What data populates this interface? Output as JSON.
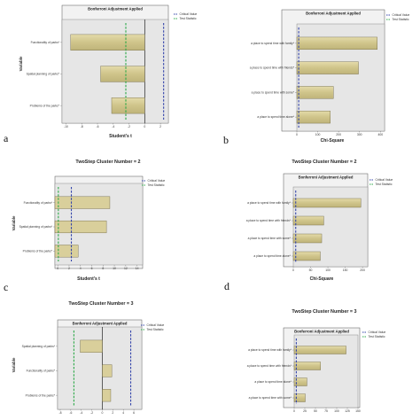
{
  "panels": [
    {
      "letter": "a",
      "cluster_title": "",
      "legend": [
        "Critical Value",
        "Test Statistic"
      ],
      "colors": {
        "critical": "#3344aa",
        "teststat": "#2eaa4a",
        "bar": "#d9cf9b",
        "bar_stroke": "#6b6340"
      },
      "chart_data": {
        "type": "bar",
        "orientation": "horizontal",
        "title": "Bonferroni Adjustment Applied",
        "xlabel": "Student's t",
        "ylabel": "Variable",
        "categories": [
          "Functionality of parks*",
          "Spatial planning of parks*",
          "Problems of the parks*"
        ],
        "values": [
          -9.4,
          -5.6,
          -4.2
        ],
        "xlim": [
          -10.5,
          3
        ],
        "xticks": [
          "-10",
          "-8",
          "-6",
          "-4",
          "-2",
          "0",
          "2"
        ],
        "xtick_values": [
          -10,
          -8,
          -6,
          -4,
          -2,
          0,
          2
        ],
        "zero_line": 0,
        "critical_values": [
          2.4
        ],
        "test_lines": [
          -2.4
        ],
        "bar_shading": true
      }
    },
    {
      "letter": "b",
      "cluster_title": "",
      "legend": [
        "Critical Value",
        "Test Statistic"
      ],
      "colors": {
        "critical": "#3344aa",
        "teststat": "#2eaa4a",
        "bar": "#d9cf9b",
        "bar_stroke": "#6b6340"
      },
      "chart_data": {
        "type": "bar",
        "orientation": "horizontal",
        "title": "Bonferroni Adjustment Applied",
        "xlabel": "Chi-Square",
        "ylabel": "",
        "categories": [
          "a place to spend time with family*",
          "a place to spend time with friends*",
          "a place to spend time with some*",
          "a place to spend time alone*"
        ],
        "values": [
          385,
          295,
          175,
          160
        ],
        "xlim": [
          0,
          420
        ],
        "xticks": [
          "0",
          "100",
          "200",
          "300",
          "400"
        ],
        "xtick_values": [
          0,
          100,
          200,
          300,
          400
        ],
        "zero_line": null,
        "critical_values": [
          9
        ],
        "test_lines": [],
        "bar_shading": true
      }
    },
    {
      "letter": "c",
      "cluster_title": "TwoStep Cluster Number = 2",
      "legend": [
        "Critical Value",
        "Test Statistic"
      ],
      "colors": {
        "critical": "#3344aa",
        "teststat": "#2eaa4a",
        "bar": "#d9cf9b",
        "bar_stroke": "#6b6340"
      },
      "chart_data": {
        "type": "bar",
        "orientation": "horizontal",
        "title": "",
        "xlabel": "Student's t",
        "ylabel": "Variable",
        "categories": [
          "Functionality of parks*",
          "Spatial planning of parks*",
          "Problems of the parks*"
        ],
        "values": [
          9.2,
          8.6,
          3.6
        ],
        "xlim": [
          -0.5,
          15
        ],
        "xticks": [
          "0",
          "2",
          "4",
          "6",
          "8",
          "10",
          "12",
          "14"
        ],
        "xtick_values": [
          0,
          2,
          4,
          6,
          8,
          10,
          12,
          14
        ],
        "zero_line": null,
        "critical_values": [
          2.4
        ],
        "test_lines": [
          0.1
        ],
        "bar_shading": false
      }
    },
    {
      "letter": "d",
      "cluster_title": "TwoStep Cluster Number = 2",
      "legend": [
        "Critical Value",
        "Test Statistic"
      ],
      "colors": {
        "critical": "#3344aa",
        "teststat": "#2eaa4a",
        "bar": "#d9cf9b",
        "bar_stroke": "#6b6340"
      },
      "chart_data": {
        "type": "bar",
        "orientation": "horizontal",
        "title": "Bonferroni Adjustment Applied",
        "xlabel": "Chi-Square",
        "ylabel": "",
        "categories": [
          "a place to spend time with family*",
          "a place to spend time with friends*",
          "a place to spend time with some*",
          "a place to spend time alone*"
        ],
        "values": [
          195,
          88,
          82,
          78
        ],
        "xlim": [
          0,
          215
        ],
        "xticks": [
          "0",
          "50",
          "100",
          "150",
          "200"
        ],
        "xtick_values": [
          0,
          50,
          100,
          150,
          200
        ],
        "zero_line": null,
        "critical_values": [
          7
        ],
        "test_lines": [],
        "bar_shading": true
      }
    },
    {
      "letter": "",
      "cluster_title": "TwoStep Cluster Number = 3",
      "legend": [
        "Critical Value",
        "Test Statistic"
      ],
      "colors": {
        "critical": "#3344aa",
        "teststat": "#2eaa4a",
        "bar": "#d9cf9b",
        "bar_stroke": "#6b6340"
      },
      "chart_data": {
        "type": "bar",
        "orientation": "horizontal",
        "title": "Bonferroni Adjustment Applied",
        "xlabel": "",
        "ylabel": "Variable",
        "categories": [
          "Spatial planning of parks*",
          "Functionality of parks*",
          "Problems of the parks*"
        ],
        "values": [
          -4.2,
          1.8,
          1.6
        ],
        "xlim": [
          -8.5,
          7.5
        ],
        "xticks": [
          "-8",
          "-6",
          "-4",
          "-2",
          "0",
          "2",
          "4",
          "6"
        ],
        "xtick_values": [
          -8,
          -6,
          -4,
          -2,
          0,
          2,
          4,
          6
        ],
        "zero_line": 0,
        "critical_values": [
          5.4
        ],
        "test_lines": [
          -5.4
        ],
        "bar_shading": false
      }
    },
    {
      "letter": "",
      "cluster_title": "TwoStep Cluster Number = 3",
      "legend": [
        "Critical Value",
        "Test Statistic"
      ],
      "colors": {
        "critical": "#3344aa",
        "teststat": "#2eaa4a",
        "bar": "#d9cf9b",
        "bar_stroke": "#6b6340"
      },
      "chart_data": {
        "type": "bar",
        "orientation": "horizontal",
        "title": "Bonferroni Adjustment Applied",
        "xlabel": "",
        "ylabel": "",
        "categories": [
          "a place to spend time with family*",
          "a place to spend time with friends*",
          "a place to spend time alone*",
          "a place to spend time with some*"
        ],
        "values": [
          122,
          62,
          30,
          26
        ],
        "xlim": [
          0,
          150
        ],
        "xticks": [
          "0",
          "25",
          "50",
          "75",
          "100",
          "125",
          "150"
        ],
        "xtick_values": [
          0,
          25,
          50,
          75,
          100,
          125,
          150
        ],
        "zero_line": null,
        "critical_values": [
          5
        ],
        "test_lines": [],
        "bar_shading": true
      }
    }
  ]
}
